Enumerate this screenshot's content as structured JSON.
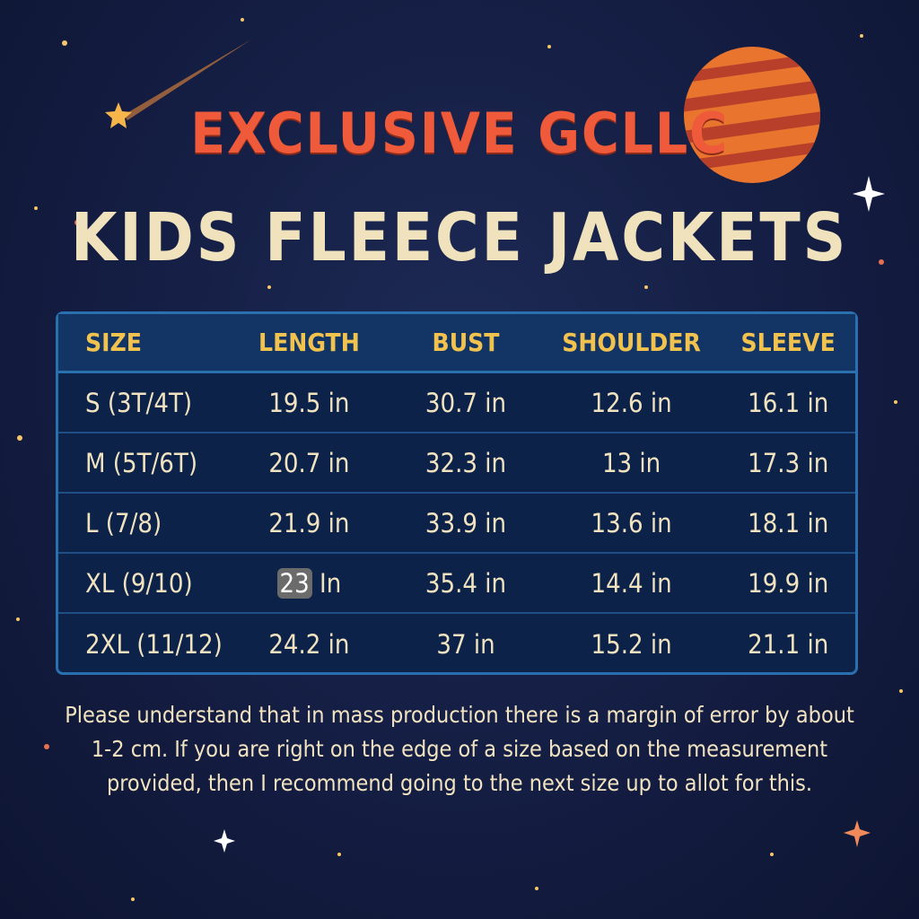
{
  "title_line1": "EXCLUSIVE GCLLC",
  "title_line2": "KIDS FLEECE JACKETS",
  "table": {
    "headers": [
      "SIZE",
      "LENGTH",
      "BUST",
      "SHOULDER",
      "SLEEVE"
    ],
    "rows": [
      [
        "S (3T/4T)",
        "19.5 in",
        "30.7 in",
        "12.6 in",
        "16.1 in"
      ],
      [
        "M (5T/6T)",
        "20.7 in",
        "32.3 in",
        "13 in",
        "17.3 in"
      ],
      [
        "L (7/8)",
        "21.9 in",
        "33.9 in",
        "13.6 in",
        "18.1 in"
      ],
      [
        "XL (9/10)",
        "23 In",
        "35.4 in",
        "14.4 in",
        "19.9 in"
      ],
      [
        "2XL (11/12)",
        "24.2 in",
        "37 in",
        "15.2 in",
        "21.1 in"
      ]
    ]
  },
  "note": "Please understand that in mass production there is a margin of error by about 1-2 cm. If you are right on the edge of a size based on the measurement provided, then I recommend going to the next size up to allot for this.",
  "colors": {
    "title_accent": "#ee5a3a",
    "title_main": "#f0e2bd",
    "header_text": "#f2c24e",
    "table_bg": "#0c2249",
    "border": "#2a6fae"
  }
}
